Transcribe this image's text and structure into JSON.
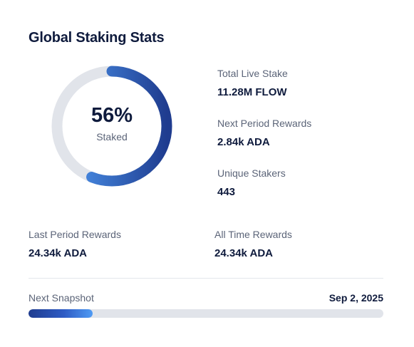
{
  "card": {
    "title": "Global Staking Stats"
  },
  "donut": {
    "percent": 56,
    "value_text": "56%",
    "label": "Staked",
    "track_color": "#e1e4ea",
    "gradient_start": "#1f3c8f",
    "gradient_end": "#4f9bf4"
  },
  "stats": {
    "total_live_stake": {
      "label": "Total Live Stake",
      "value": "11.28M FLOW"
    },
    "next_period_rewards": {
      "label": "Next Period Rewards",
      "value": "2.84k ADA"
    },
    "unique_stakers": {
      "label": "Unique Stakers",
      "value": "443"
    },
    "last_period_rewards": {
      "label": "Last Period Rewards",
      "value": "24.34k ADA"
    },
    "all_time_rewards": {
      "label": "All Time Rewards",
      "value": "24.34k ADA"
    }
  },
  "snapshot": {
    "label": "Next Snapshot",
    "date": "Sep 2, 2025",
    "progress_fraction": 0.18
  }
}
